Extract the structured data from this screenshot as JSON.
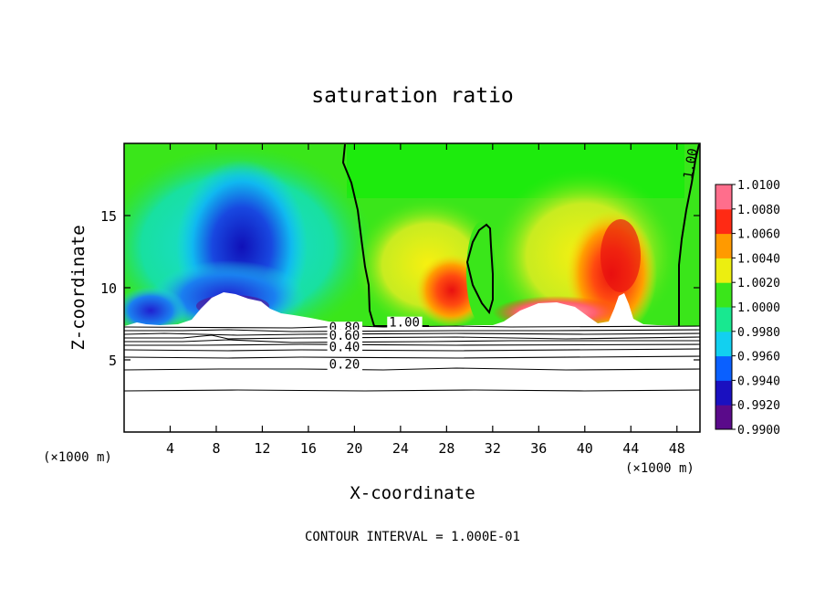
{
  "chart_data": {
    "type": "heatmap",
    "title": "saturation ratio",
    "xlabel": "X-coordinate",
    "ylabel": "Z-coordinate",
    "x_unit": "(×1000 m)",
    "z_unit": "(×1000 m)",
    "xlim": [
      0,
      50
    ],
    "ylim": [
      0,
      20
    ],
    "x_ticks": [
      4,
      8,
      12,
      16,
      20,
      24,
      28,
      32,
      36,
      40,
      44,
      48
    ],
    "y_ticks": [
      5,
      10,
      15
    ],
    "colorbar": {
      "min": 0.99,
      "max": 1.01,
      "levels": [
        "0.9900",
        "0.9920",
        "0.9940",
        "0.9960",
        "0.9980",
        "1.0000",
        "1.0020",
        "1.0040",
        "1.0060",
        "1.0080",
        "1.0100"
      ],
      "colors": [
        "#5a0a8a",
        "#1a10c0",
        "#0a60ff",
        "#12d0f0",
        "#18e890",
        "#3ae61a",
        "#ecee10",
        "#ff9a00",
        "#ff2a14",
        "#ff6e8c"
      ]
    },
    "contour_labels": [
      {
        "text": "1.00",
        "x": 23.0,
        "z": 7.3
      },
      {
        "text": "1.00",
        "x": 49.3,
        "z": 17.5
      },
      {
        "text": "0.80",
        "x": 17.8,
        "z": 6.95
      },
      {
        "text": "0.60",
        "x": 17.8,
        "z": 6.4
      },
      {
        "text": "0.40",
        "x": 17.8,
        "z": 5.6
      },
      {
        "text": "0.20",
        "x": 17.8,
        "z": 4.4
      }
    ],
    "contour_interval_text": "CONTOUR INTERVAL = 1.000E-01"
  }
}
